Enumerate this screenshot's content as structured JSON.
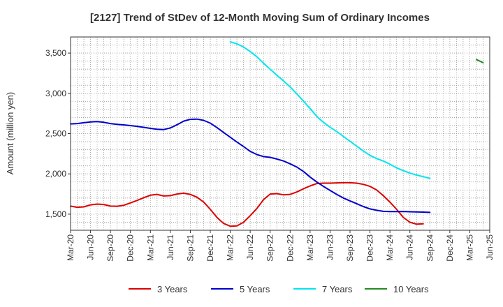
{
  "chart_data": {
    "type": "line",
    "title": "[2127]  Trend of StDev of 12-Month Moving Sum of Ordinary Incomes",
    "xlabel": "",
    "ylabel": "Amount (million yen)",
    "ylim": [
      1300,
      3700
    ],
    "yticks": [
      1500,
      2000,
      2500,
      3000,
      3500
    ],
    "ytick_labels": [
      "1,500",
      "2,000",
      "2,500",
      "3,000",
      "3,500"
    ],
    "xtick_labels": [
      "Mar-20",
      "Jun-20",
      "Sep-20",
      "Dec-20",
      "Mar-21",
      "Jun-21",
      "Sep-21",
      "Dec-21",
      "Mar-22",
      "Jun-22",
      "Sep-22",
      "Dec-22",
      "Mar-23",
      "Jun-23",
      "Sep-23",
      "Dec-23",
      "Mar-24",
      "Jun-24",
      "Sep-24",
      "Dec-24",
      "Mar-25",
      "Jun-25"
    ],
    "grid": true,
    "legend_position": "bottom",
    "series": [
      {
        "name": "3 Years",
        "color": "#dd0000",
        "start_index": 0,
        "values": [
          1600,
          1585,
          1590,
          1615,
          1625,
          1620,
          1600,
          1598,
          1610,
          1640,
          1670,
          1705,
          1735,
          1745,
          1725,
          1730,
          1750,
          1760,
          1745,
          1710,
          1650,
          1560,
          1460,
          1385,
          1350,
          1355,
          1400,
          1480,
          1570,
          1680,
          1750,
          1755,
          1740,
          1745,
          1775,
          1815,
          1850,
          1880,
          1885,
          1885,
          1888,
          1890,
          1890,
          1885,
          1870,
          1845,
          1800,
          1730,
          1650,
          1560,
          1460,
          1400,
          1375,
          1380
        ]
      },
      {
        "name": "5 Years",
        "color": "#0000cc",
        "start_index": 0,
        "values": [
          2620,
          2625,
          2635,
          2645,
          2650,
          2640,
          2625,
          2615,
          2608,
          2600,
          2590,
          2578,
          2565,
          2555,
          2550,
          2570,
          2610,
          2655,
          2678,
          2680,
          2665,
          2630,
          2575,
          2515,
          2455,
          2395,
          2340,
          2280,
          2240,
          2215,
          2205,
          2185,
          2160,
          2125,
          2085,
          2030,
          1960,
          1900,
          1845,
          1795,
          1745,
          1700,
          1665,
          1630,
          1595,
          1565,
          1548,
          1535,
          1532,
          1532,
          1533,
          1530,
          1527,
          1525,
          1522
        ]
      },
      {
        "name": "7 Years",
        "color": "#00e5ee",
        "start_index": 24,
        "values": [
          3640,
          3615,
          3575,
          3520,
          3455,
          3375,
          3300,
          3225,
          3155,
          3080,
          2995,
          2905,
          2810,
          2715,
          2640,
          2580,
          2525,
          2465,
          2405,
          2345,
          2285,
          2230,
          2190,
          2160,
          2120,
          2075,
          2040,
          2010,
          1985,
          1965,
          1945
        ]
      },
      {
        "name": "10 Years",
        "color": "#228b22",
        "start_index": 61,
        "values": [
          3420,
          3380
        ]
      }
    ]
  }
}
